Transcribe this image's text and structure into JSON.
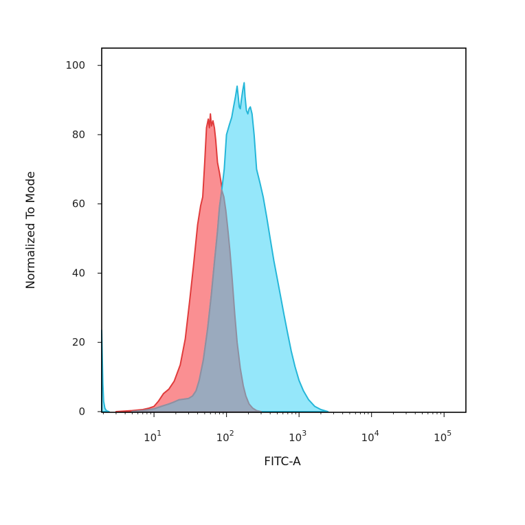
{
  "chart_data": {
    "type": "area",
    "title": "",
    "xlabel": "FITC-A",
    "ylabel": "Normalized To Mode",
    "x_scale": "log",
    "xlim": [
      1.9,
      200000
    ],
    "ylim": [
      0,
      105
    ],
    "grid": false,
    "legend": "none",
    "x_ticks": [
      {
        "base": "10",
        "exp": "1",
        "value": 10
      },
      {
        "base": "10",
        "exp": "2",
        "value": 100
      },
      {
        "base": "10",
        "exp": "3",
        "value": 1000
      },
      {
        "base": "10",
        "exp": "4",
        "value": 10000
      },
      {
        "base": "10",
        "exp": "5",
        "value": 100000
      }
    ],
    "y_ticks": [
      {
        "label": "0",
        "value": 0
      },
      {
        "label": "20",
        "value": 20
      },
      {
        "label": "40",
        "value": 40
      },
      {
        "label": "60",
        "value": 60
      },
      {
        "label": "80",
        "value": 80
      },
      {
        "label": "100",
        "value": 100
      }
    ],
    "series": [
      {
        "fill": "#fa8f92",
        "stroke": "#e03b3b",
        "points": [
          [
            3.0,
            0
          ],
          [
            5.0,
            0.3
          ],
          [
            7.0,
            0.6
          ],
          [
            8.5,
            1.0
          ],
          [
            10.0,
            1.5
          ],
          [
            11.5,
            3.0
          ],
          [
            13.5,
            5.2
          ],
          [
            16.0,
            6.5
          ],
          [
            19.0,
            8.8
          ],
          [
            23.0,
            13.5
          ],
          [
            27.0,
            21.0
          ],
          [
            31.0,
            32.0
          ],
          [
            35.0,
            42.0
          ],
          [
            40.0,
            54.0
          ],
          [
            44.0,
            59.5
          ],
          [
            47.0,
            62.0
          ],
          [
            50.0,
            72.0
          ],
          [
            53.0,
            82.0
          ],
          [
            56.0,
            84.5
          ],
          [
            58.0,
            82.0
          ],
          [
            60.0,
            86.0
          ],
          [
            62.0,
            82.5
          ],
          [
            65.0,
            84.0
          ],
          [
            68.0,
            82.0
          ],
          [
            71.0,
            78.5
          ],
          [
            75.0,
            72.0
          ],
          [
            80.0,
            69.0
          ],
          [
            86.0,
            65.0
          ],
          [
            92.0,
            62.0
          ],
          [
            98.0,
            58.0
          ],
          [
            105.0,
            52.0
          ],
          [
            112.0,
            46.0
          ],
          [
            120.0,
            38.0
          ],
          [
            130.0,
            28.0
          ],
          [
            140.0,
            20.0
          ],
          [
            155.0,
            12.5
          ],
          [
            170.0,
            7.5
          ],
          [
            185.0,
            4.5
          ],
          [
            205.0,
            2.2
          ],
          [
            230.0,
            1.0
          ],
          [
            260.0,
            0.3
          ],
          [
            300.0,
            0
          ]
        ]
      },
      {
        "fill": "#95e7fa",
        "stroke": "#24b6d8",
        "points": [
          [
            5.0,
            0
          ],
          [
            7.0,
            0.3
          ],
          [
            10.0,
            0.8
          ],
          [
            13.0,
            1.6
          ],
          [
            16.0,
            2.2
          ],
          [
            19.0,
            2.8
          ],
          [
            22.0,
            3.4
          ],
          [
            26.0,
            3.6
          ],
          [
            30.0,
            3.8
          ],
          [
            34.0,
            4.5
          ],
          [
            38.0,
            6.0
          ],
          [
            42.0,
            9.0
          ],
          [
            48.0,
            15.0
          ],
          [
            55.0,
            24.0
          ],
          [
            62.0,
            34.0
          ],
          [
            68.0,
            43.0
          ],
          [
            75.0,
            52.0
          ],
          [
            80.0,
            59.0
          ],
          [
            86.0,
            64.0
          ],
          [
            93.0,
            70.0
          ],
          [
            100.0,
            80.0
          ],
          [
            110.0,
            83.0
          ],
          [
            118.0,
            85.0
          ],
          [
            125.0,
            88.0
          ],
          [
            133.0,
            91.0
          ],
          [
            140.0,
            94.0
          ],
          [
            145.0,
            91.0
          ],
          [
            150.0,
            88.0
          ],
          [
            155.0,
            87.5
          ],
          [
            160.0,
            90.0
          ],
          [
            168.0,
            93.0
          ],
          [
            175.0,
            95.0
          ],
          [
            180.0,
            91.0
          ],
          [
            188.0,
            87.0
          ],
          [
            197.0,
            86.0
          ],
          [
            205.0,
            87.5
          ],
          [
            213.0,
            88.0
          ],
          [
            225.0,
            86.0
          ],
          [
            240.0,
            80.0
          ],
          [
            260.0,
            70.0
          ],
          [
            290.0,
            66.0
          ],
          [
            320.0,
            62.0
          ],
          [
            360.0,
            56.0
          ],
          [
            400.0,
            50.0
          ],
          [
            450.0,
            43.5
          ],
          [
            500.0,
            38.5
          ],
          [
            560.0,
            33.0
          ],
          [
            620.0,
            28.0
          ],
          [
            690.0,
            23.0
          ],
          [
            780.0,
            17.5
          ],
          [
            880.0,
            13.0
          ],
          [
            1000.0,
            9.0
          ],
          [
            1150.0,
            6.0
          ],
          [
            1350.0,
            3.5
          ],
          [
            1650.0,
            1.5
          ],
          [
            2000.0,
            0.6
          ],
          [
            2500.0,
            0
          ]
        ]
      },
      {
        "fill": "#9aaabe",
        "stroke": "#8f8fa0",
        "points": [
          [
            5.0,
            0
          ],
          [
            7.0,
            0.3
          ],
          [
            10.0,
            0.8
          ],
          [
            13.0,
            1.6
          ],
          [
            16.0,
            2.2
          ],
          [
            19.0,
            2.8
          ],
          [
            22.0,
            3.4
          ],
          [
            26.0,
            3.6
          ],
          [
            30.0,
            3.8
          ],
          [
            34.0,
            4.5
          ],
          [
            38.0,
            6.0
          ],
          [
            42.0,
            9.0
          ],
          [
            48.0,
            15.0
          ],
          [
            55.0,
            24.0
          ],
          [
            62.0,
            34.0
          ],
          [
            68.0,
            43.0
          ],
          [
            75.0,
            52.0
          ],
          [
            80.0,
            59.0
          ],
          [
            86.0,
            64.0
          ],
          [
            92.0,
            62.0
          ],
          [
            98.0,
            58.0
          ],
          [
            105.0,
            52.0
          ],
          [
            112.0,
            46.0
          ],
          [
            120.0,
            38.0
          ],
          [
            130.0,
            28.0
          ],
          [
            140.0,
            20.0
          ],
          [
            155.0,
            12.5
          ],
          [
            170.0,
            7.5
          ],
          [
            185.0,
            4.5
          ],
          [
            205.0,
            2.2
          ],
          [
            230.0,
            1.0
          ],
          [
            260.0,
            0.3
          ],
          [
            300.0,
            0
          ]
        ]
      },
      {
        "fill": "#95e7fa",
        "stroke": "#24b6d8",
        "points": [
          [
            1.9,
            0
          ],
          [
            1.9,
            23.5
          ],
          [
            1.93,
            17.0
          ],
          [
            1.97,
            8.0
          ],
          [
            2.02,
            3.0
          ],
          [
            2.1,
            1.0
          ],
          [
            2.2,
            0.3
          ],
          [
            2.4,
            0
          ]
        ]
      }
    ]
  }
}
